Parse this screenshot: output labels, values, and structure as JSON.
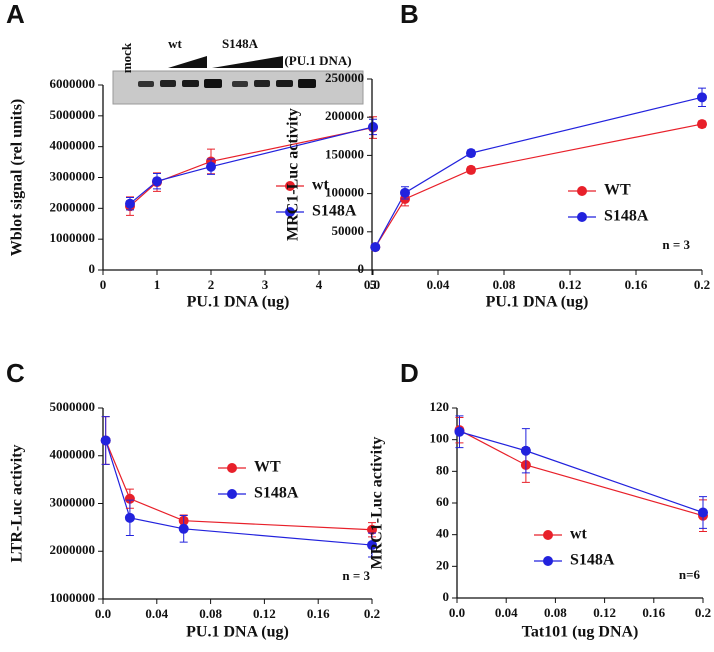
{
  "chart_data": [
    {
      "type": "line",
      "panel": "A",
      "x_label": "PU.1 DNA (ug)",
      "y_label": "Wblot signal (rel units)",
      "blot_labels": [
        "mock",
        "wt",
        "S148A",
        "(PU.1 DNA)"
      ],
      "x": [
        0.5,
        1,
        2,
        5
      ],
      "xlim": [
        0,
        5
      ],
      "xticks": [
        0,
        1,
        2,
        3,
        4,
        5
      ],
      "ylim": [
        0,
        6000000
      ],
      "yticks": [
        0,
        1000000,
        2000000,
        3000000,
        4000000,
        5000000,
        6000000
      ],
      "series": [
        {
          "name": "wt",
          "color": "#e8202a",
          "values": [
            2070000,
            2850000,
            3520000,
            4620000
          ],
          "errors": [
            300000,
            300000,
            400000,
            350000
          ]
        },
        {
          "name": "S148A",
          "color": "#2222dd",
          "values": [
            2150000,
            2880000,
            3350000,
            4640000
          ],
          "errors": [
            200000,
            250000,
            250000,
            250000
          ]
        }
      ]
    },
    {
      "type": "line",
      "panel": "B",
      "x_label": "PU.1 DNA (ug)",
      "y_label": "MRC1-Luc activity",
      "note": "n = 3",
      "x": [
        0.002,
        0.02,
        0.06,
        0.2
      ],
      "xlim": [
        0,
        0.2
      ],
      "xticks": [
        {
          "value": 0,
          "label": "0.0"
        },
        0.04,
        0.08,
        0.12,
        0.16,
        0.2
      ],
      "ylim": [
        0,
        250000
      ],
      "yticks": [
        0,
        50000,
        100000,
        150000,
        200000,
        250000
      ],
      "series": [
        {
          "name": "WT",
          "color": "#e8202a",
          "values": [
            30000,
            93000,
            131000,
            191000
          ],
          "errors": [
            3000,
            9000,
            4000,
            4000
          ]
        },
        {
          "name": "S148A",
          "color": "#2222dd",
          "values": [
            30000,
            101000,
            153000,
            226000
          ],
          "errors": [
            3000,
            8000,
            4000,
            12000
          ]
        }
      ]
    },
    {
      "type": "line",
      "panel": "C",
      "x_label": "PU.1 DNA (ug)",
      "y_label": "LTR-Luc activity",
      "note": "n = 3",
      "x": [
        0.002,
        0.02,
        0.06,
        0.2
      ],
      "xlim": [
        0,
        0.2
      ],
      "xticks": [
        {
          "value": 0,
          "label": "0.0"
        },
        0.04,
        0.08,
        0.12,
        0.16,
        0.2
      ],
      "ylim": [
        1000000,
        5000000
      ],
      "yticks": [
        1000000,
        2000000,
        3000000,
        4000000,
        5000000
      ],
      "series": [
        {
          "name": "WT",
          "color": "#e8202a",
          "values": [
            4320000,
            3100000,
            2640000,
            2450000
          ],
          "errors": [
            500000,
            200000,
            120000,
            150000
          ]
        },
        {
          "name": "S148A",
          "color": "#2222dd",
          "values": [
            4320000,
            2700000,
            2470000,
            2130000
          ],
          "errors": [
            500000,
            370000,
            280000,
            250000
          ]
        }
      ]
    },
    {
      "type": "line",
      "panel": "D",
      "x_label": "Tat101 (ug DNA)",
      "y_label": "MRC1-Luc activity",
      "note": "n=6",
      "x": [
        0.002,
        0.056,
        0.2
      ],
      "xlim": [
        0,
        0.2
      ],
      "xticks": [
        {
          "value": 0,
          "label": "0.0"
        },
        0.04,
        0.08,
        0.12,
        0.16,
        0.2
      ],
      "ylim": [
        0,
        120
      ],
      "yticks": [
        0,
        20,
        40,
        60,
        80,
        100,
        120
      ],
      "series": [
        {
          "name": "wt",
          "color": "#e8202a",
          "values": [
            106,
            84,
            52
          ],
          "errors": [
            8,
            11,
            10
          ]
        },
        {
          "name": "S148A",
          "color": "#2222dd",
          "values": [
            105,
            93,
            54
          ],
          "errors": [
            10,
            14,
            10
          ]
        }
      ]
    }
  ]
}
